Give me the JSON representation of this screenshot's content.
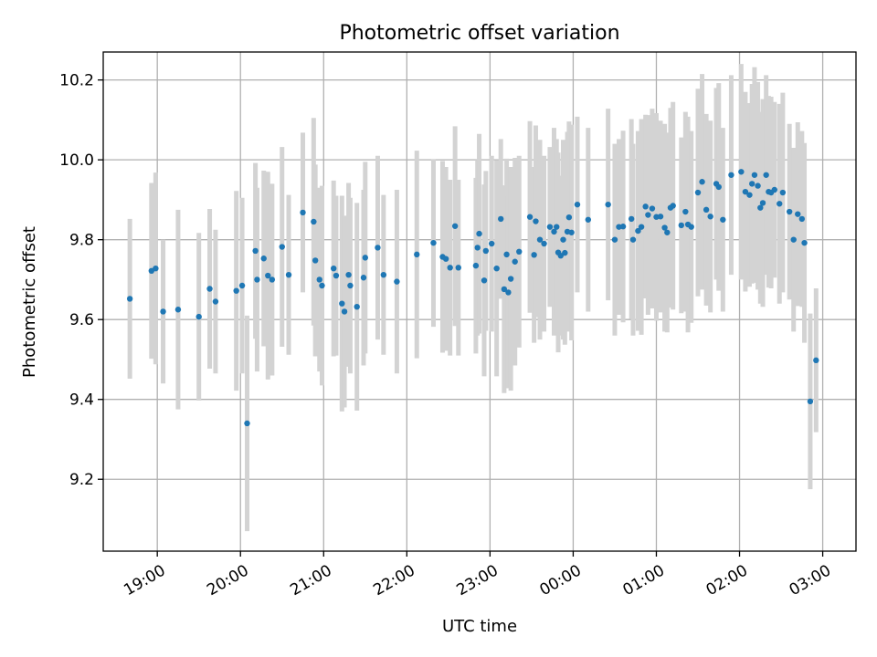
{
  "chart_data": {
    "type": "scatter",
    "title": "Photometric offset variation",
    "xlabel": "UTC time",
    "ylabel": "Photometric offset",
    "x_unit": "hours since 18:00 UTC (axis crosses midnight)",
    "xlim": [
      0.35,
      9.4
    ],
    "ylim": [
      9.02,
      10.27
    ],
    "grid": true,
    "x_ticks": [
      {
        "value": 1,
        "label": "19:00"
      },
      {
        "value": 2,
        "label": "20:00"
      },
      {
        "value": 3,
        "label": "21:00"
      },
      {
        "value": 4,
        "label": "22:00"
      },
      {
        "value": 5,
        "label": "23:00"
      },
      {
        "value": 6,
        "label": "00:00"
      },
      {
        "value": 7,
        "label": "01:00"
      },
      {
        "value": 8,
        "label": "02:00"
      },
      {
        "value": 9,
        "label": "03:00"
      }
    ],
    "y_ticks": [
      {
        "value": 9.2,
        "label": "9.2"
      },
      {
        "value": 9.4,
        "label": "9.4"
      },
      {
        "value": 9.6,
        "label": "9.6"
      },
      {
        "value": 9.8,
        "label": "9.8"
      },
      {
        "value": 10.0,
        "label": "10.0"
      },
      {
        "value": 10.2,
        "label": "10.2"
      }
    ],
    "colors": {
      "point": "#1f77b4",
      "errorbar": "#d3d3d3",
      "grid": "#b0b0b0"
    },
    "points": [
      [
        0.67,
        9.652,
        0.2
      ],
      [
        0.93,
        9.722,
        0.22
      ],
      [
        0.98,
        9.728,
        0.24
      ],
      [
        1.07,
        9.62,
        0.18
      ],
      [
        1.25,
        9.625,
        0.25
      ],
      [
        1.5,
        9.607,
        0.21
      ],
      [
        1.63,
        9.677,
        0.2
      ],
      [
        1.7,
        9.645,
        0.18
      ],
      [
        1.95,
        9.672,
        0.25
      ],
      [
        2.02,
        9.685,
        0.22
      ],
      [
        2.08,
        9.34,
        0.27
      ],
      [
        2.18,
        9.772,
        0.22
      ],
      [
        2.2,
        9.7,
        0.23
      ],
      [
        2.28,
        9.753,
        0.22
      ],
      [
        2.33,
        9.71,
        0.26
      ],
      [
        2.38,
        9.7,
        0.24
      ],
      [
        2.5,
        9.782,
        0.25
      ],
      [
        2.58,
        9.712,
        0.2
      ],
      [
        2.75,
        9.868,
        0.2
      ],
      [
        2.88,
        9.845,
        0.26
      ],
      [
        2.9,
        9.748,
        0.24
      ],
      [
        2.95,
        9.7,
        0.23
      ],
      [
        2.98,
        9.685,
        0.25
      ],
      [
        3.12,
        9.728,
        0.22
      ],
      [
        3.15,
        9.71,
        0.2
      ],
      [
        3.22,
        9.64,
        0.27
      ],
      [
        3.25,
        9.62,
        0.24
      ],
      [
        3.3,
        9.712,
        0.23
      ],
      [
        3.32,
        9.685,
        0.22
      ],
      [
        3.4,
        9.632,
        0.26
      ],
      [
        3.48,
        9.705,
        0.22
      ],
      [
        3.5,
        9.755,
        0.24
      ],
      [
        3.65,
        9.78,
        0.23
      ],
      [
        3.72,
        9.712,
        0.2
      ],
      [
        3.88,
        9.695,
        0.23
      ],
      [
        4.12,
        9.763,
        0.26
      ],
      [
        4.32,
        9.792,
        0.21
      ],
      [
        4.43,
        9.757,
        0.24
      ],
      [
        4.47,
        9.752,
        0.23
      ],
      [
        4.52,
        9.73,
        0.22
      ],
      [
        4.58,
        9.834,
        0.25
      ],
      [
        4.62,
        9.73,
        0.22
      ],
      [
        4.83,
        9.735,
        0.22
      ],
      [
        4.85,
        9.78,
        0.22
      ],
      [
        4.87,
        9.815,
        0.25
      ],
      [
        4.93,
        9.698,
        0.24
      ],
      [
        4.95,
        9.772,
        0.2
      ],
      [
        5.02,
        9.79,
        0.22
      ],
      [
        5.08,
        9.728,
        0.27
      ],
      [
        5.13,
        9.852,
        0.2
      ],
      [
        5.17,
        9.676,
        0.26
      ],
      [
        5.2,
        9.763,
        0.24
      ],
      [
        5.22,
        9.668,
        0.24
      ],
      [
        5.25,
        9.702,
        0.28
      ],
      [
        5.3,
        9.745,
        0.26
      ],
      [
        5.35,
        9.77,
        0.24
      ],
      [
        5.48,
        9.857,
        0.24
      ],
      [
        5.53,
        9.762,
        0.22
      ],
      [
        5.55,
        9.846,
        0.24
      ],
      [
        5.6,
        9.8,
        0.25
      ],
      [
        5.65,
        9.79,
        0.22
      ],
      [
        5.72,
        9.832,
        0.2
      ],
      [
        5.77,
        9.82,
        0.26
      ],
      [
        5.8,
        9.832,
        0.22
      ],
      [
        5.82,
        9.768,
        0.25
      ],
      [
        5.85,
        9.76,
        0.2
      ],
      [
        5.88,
        9.8,
        0.25
      ],
      [
        5.9,
        9.767,
        0.23
      ],
      [
        5.93,
        9.82,
        0.25
      ],
      [
        5.95,
        9.856,
        0.24
      ],
      [
        5.98,
        9.818,
        0.27
      ],
      [
        6.05,
        9.888,
        0.22
      ],
      [
        6.18,
        9.85,
        0.23
      ],
      [
        6.42,
        9.888,
        0.24
      ],
      [
        6.5,
        9.8,
        0.24
      ],
      [
        6.55,
        9.832,
        0.22
      ],
      [
        6.6,
        9.833,
        0.24
      ],
      [
        6.7,
        9.852,
        0.25
      ],
      [
        6.72,
        9.8,
        0.24
      ],
      [
        6.78,
        9.822,
        0.25
      ],
      [
        6.82,
        9.832,
        0.27
      ],
      [
        6.87,
        9.883,
        0.23
      ],
      [
        6.9,
        9.862,
        0.25
      ],
      [
        6.95,
        9.878,
        0.25
      ],
      [
        7.0,
        9.857,
        0.26
      ],
      [
        7.05,
        9.858,
        0.24
      ],
      [
        7.1,
        9.83,
        0.26
      ],
      [
        7.13,
        9.818,
        0.25
      ],
      [
        7.17,
        9.88,
        0.25
      ],
      [
        7.2,
        9.885,
        0.26
      ],
      [
        7.3,
        9.836,
        0.22
      ],
      [
        7.35,
        9.87,
        0.25
      ],
      [
        7.38,
        9.838,
        0.27
      ],
      [
        7.42,
        9.832,
        0.24
      ],
      [
        7.5,
        9.918,
        0.26
      ],
      [
        7.55,
        9.945,
        0.27
      ],
      [
        7.6,
        9.875,
        0.24
      ],
      [
        7.65,
        9.858,
        0.24
      ],
      [
        7.72,
        9.94,
        0.24
      ],
      [
        7.75,
        9.932,
        0.26
      ],
      [
        7.8,
        9.85,
        0.23
      ],
      [
        7.9,
        9.962,
        0.25
      ],
      [
        8.02,
        9.97,
        0.27
      ],
      [
        8.07,
        9.92,
        0.25
      ],
      [
        8.12,
        9.912,
        0.23
      ],
      [
        8.15,
        9.94,
        0.25
      ],
      [
        8.18,
        9.962,
        0.27
      ],
      [
        8.22,
        9.935,
        0.26
      ],
      [
        8.25,
        9.88,
        0.24
      ],
      [
        8.28,
        9.892,
        0.26
      ],
      [
        8.32,
        9.962,
        0.25
      ],
      [
        8.35,
        9.92,
        0.24
      ],
      [
        8.38,
        9.918,
        0.24
      ],
      [
        8.42,
        9.925,
        0.22
      ],
      [
        8.48,
        9.89,
        0.25
      ],
      [
        8.52,
        9.918,
        0.25
      ],
      [
        8.6,
        9.87,
        0.22
      ],
      [
        8.65,
        9.8,
        0.23
      ],
      [
        8.7,
        9.864,
        0.23
      ],
      [
        8.75,
        9.852,
        0.22
      ],
      [
        8.78,
        9.792,
        0.25
      ],
      [
        8.85,
        9.395,
        0.22
      ],
      [
        8.92,
        9.498,
        0.18
      ]
    ]
  }
}
